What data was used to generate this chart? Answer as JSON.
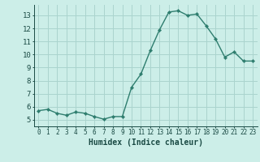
{
  "x": [
    0,
    1,
    2,
    3,
    4,
    5,
    6,
    7,
    8,
    9,
    10,
    11,
    12,
    13,
    14,
    15,
    16,
    17,
    18,
    19,
    20,
    21,
    22,
    23
  ],
  "y": [
    5.7,
    5.8,
    5.5,
    5.35,
    5.6,
    5.5,
    5.25,
    5.05,
    5.25,
    5.25,
    7.5,
    8.5,
    10.3,
    11.9,
    13.25,
    13.35,
    13.0,
    13.1,
    12.2,
    11.2,
    9.8,
    10.2,
    9.5,
    9.5
  ],
  "line_color": "#2e7d6e",
  "marker": "D",
  "marker_size": 2.2,
  "line_width": 1.0,
  "xlabel": "Humidex (Indice chaleur)",
  "xlim": [
    -0.5,
    23.5
  ],
  "ylim": [
    4.5,
    13.8
  ],
  "yticks": [
    5,
    6,
    7,
    8,
    9,
    10,
    11,
    12,
    13
  ],
  "xticks": [
    0,
    1,
    2,
    3,
    4,
    5,
    6,
    7,
    8,
    9,
    10,
    11,
    12,
    13,
    14,
    15,
    16,
    17,
    18,
    19,
    20,
    21,
    22,
    23
  ],
  "background_color": "#cceee8",
  "grid_color": "#aad4ce",
  "tick_color": "#1a4a44",
  "label_color": "#1a4a44",
  "xlabel_fontsize": 7.0,
  "ytick_fontsize": 6.5,
  "xtick_fontsize": 5.5
}
